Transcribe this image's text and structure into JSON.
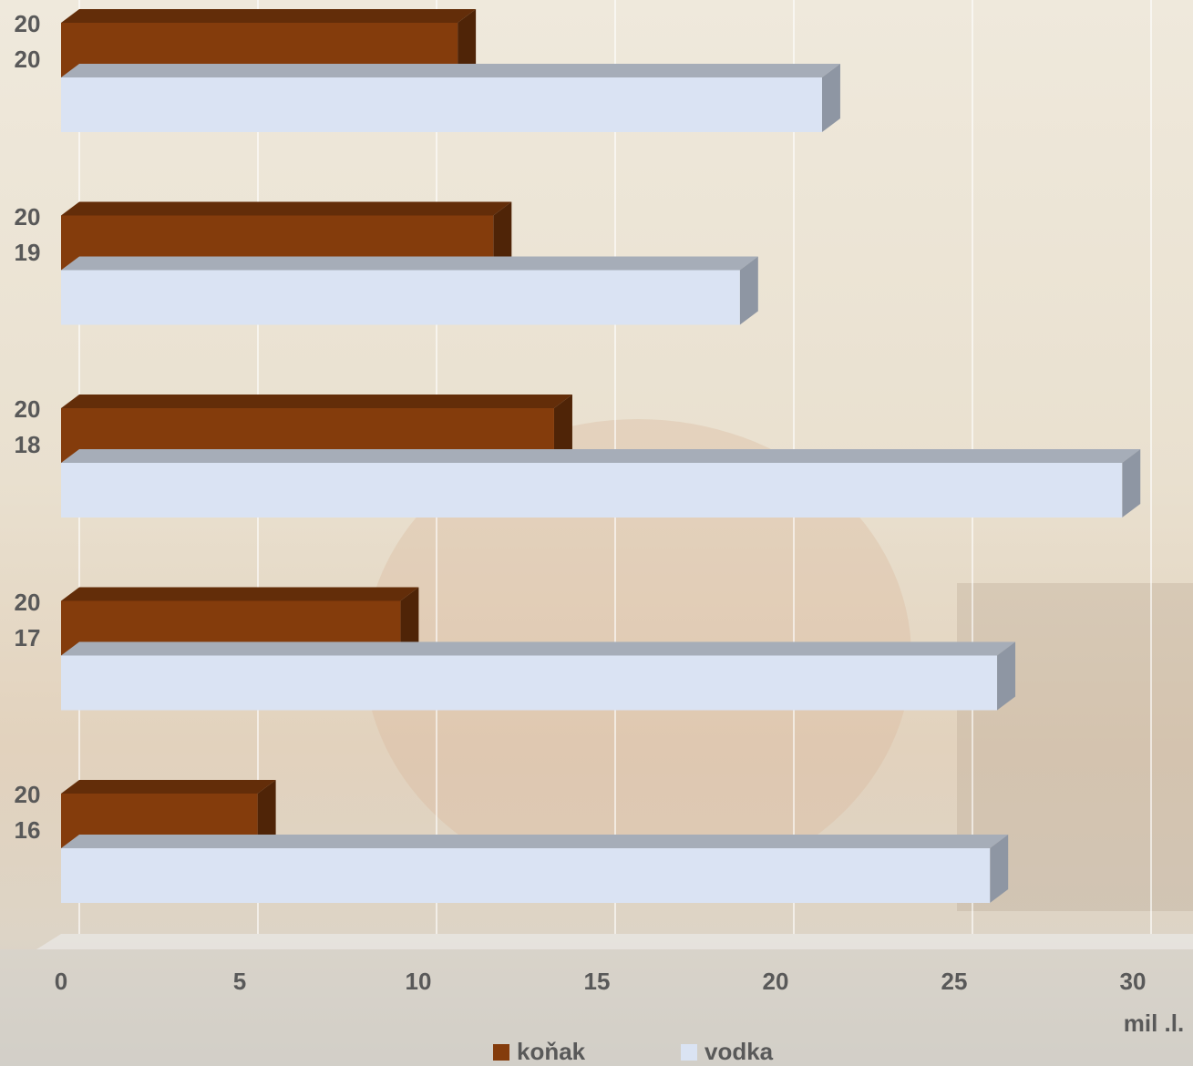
{
  "chart_data": {
    "type": "bar3d",
    "orientation": "horizontal",
    "categories": [
      "2020",
      "2019",
      "2018",
      "2017",
      "2016"
    ],
    "series": [
      {
        "name": "koňak",
        "color": "#843c0c",
        "values": [
          11.1,
          12.1,
          13.8,
          9.5,
          5.5
        ]
      },
      {
        "name": "vodka",
        "color": "#dae3f3",
        "values": [
          21.3,
          19.0,
          29.7,
          26.2,
          26.0
        ]
      }
    ],
    "xlim": [
      0,
      35
    ],
    "xticks": [
      0,
      5,
      10,
      15,
      20,
      25,
      30
    ],
    "x_label": "mil .l.",
    "grid": true,
    "legend": "bottom"
  }
}
